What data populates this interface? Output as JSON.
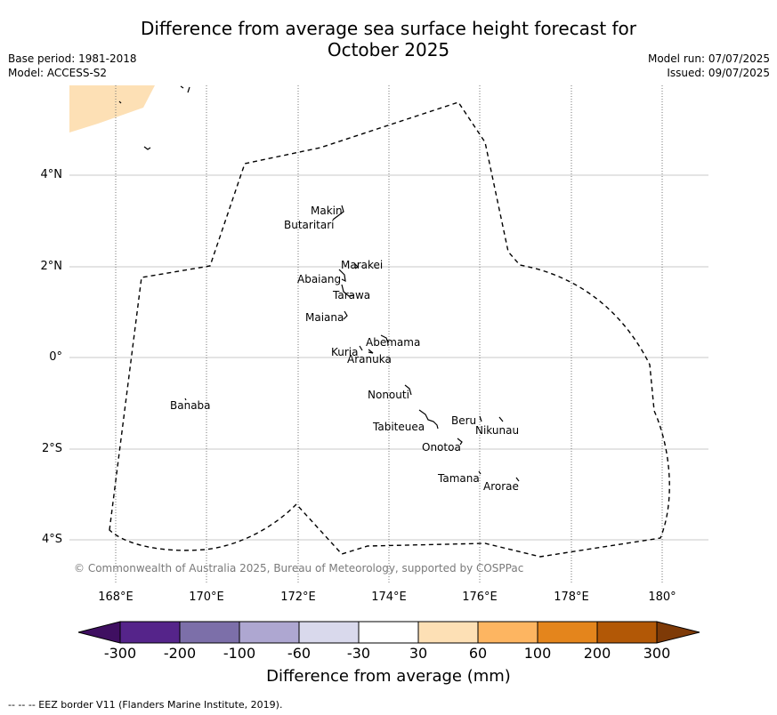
{
  "title_line1": "Difference from average sea surface height forecast for",
  "title_line2": "October 2025",
  "base_period": "Base period: 1981-2018",
  "model": "Model: ACCESS-S2",
  "model_run": "Model run: 07/07/2025",
  "issued": "Issued: 09/07/2025",
  "lat_labels": [
    "4°N",
    "2°N",
    "0°",
    "2°S",
    "4°S"
  ],
  "lon_labels": [
    "168°E",
    "170°E",
    "172°E",
    "174°E",
    "176°E",
    "178°E",
    "180°"
  ],
  "places": [
    "Makin",
    "Butaritari",
    "Marakei",
    "Abaiang",
    "Tarawa",
    "Maiana",
    "Abemama",
    "Kuria",
    "Aranuka",
    "Banaba",
    "Nonouti",
    "Tabiteuea",
    "Beru",
    "Nikunau",
    "Onotoa",
    "Tamana",
    "Arorae"
  ],
  "copyright": "© Commonwealth of Australia 2025, Bureau of Meteorology, supported by COSPPac",
  "colorbar": {
    "ticks": [
      "-300",
      "-200",
      "-100",
      "-60",
      "-30",
      "30",
      "60",
      "100",
      "200",
      "300"
    ],
    "colors": [
      "#3f0f61",
      "#55248a",
      "#7c6fa9",
      "#aea7d1",
      "#d9d9ec",
      "#ffffff",
      "#fde0b5",
      "#fdb561",
      "#e4851c",
      "#b25806",
      "#7e3a07"
    ],
    "label": "Difference from average (mm)"
  },
  "footer": "--  --  -- EEZ border V11 (Flanders Marine Institute, 2019).",
  "map_fill_color": "#fde0b5"
}
